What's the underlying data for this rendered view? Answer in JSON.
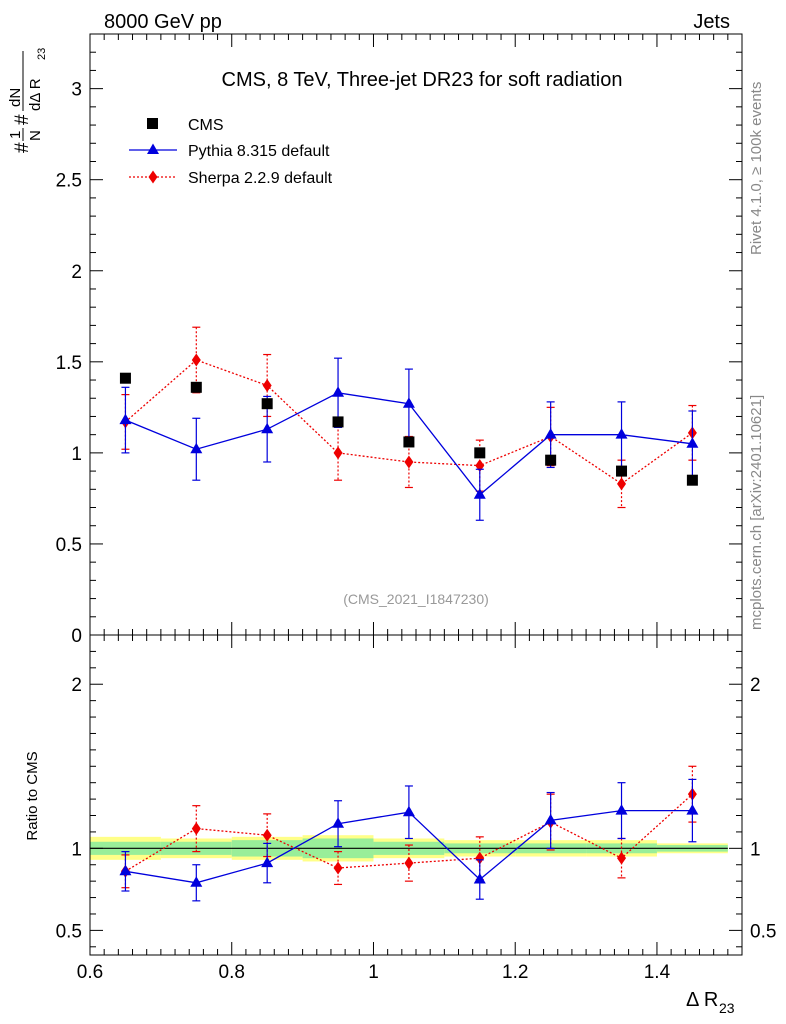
{
  "header": {
    "left": "8000 GeV pp",
    "right": "Jets"
  },
  "side_labels": {
    "rivet": "Rivet 4.1.0, ≥ 100k events",
    "mcplots": "mcplots.cern.ch [arXiv:2401.10621]"
  },
  "analysis_id": "(CMS_2021_I1847230)",
  "colors": {
    "data": "#000000",
    "pythia": "#0000dd",
    "sherpa": "#ee0000",
    "band_inner": "#99ee99",
    "band_outer": "#ffff88"
  },
  "chart_data": [
    {
      "type": "scatter",
      "panel": "main",
      "title": "CMS, 8 TeV, Three-jet DR23 for soft radiation",
      "xlabel": "Δ R23",
      "ylabel": "1/N dN/dΔ R23",
      "ylabel_parts": {
        "one": "1",
        "n": "N",
        "hash1": "#",
        "dn": "dN",
        "hash2": "#",
        "dd": "dΔ R",
        "sub": "23"
      },
      "xlim": [
        0.6,
        1.52
      ],
      "ylim": [
        0,
        3.3
      ],
      "yticks": [
        "0",
        "0.5",
        "1",
        "1.5",
        "2",
        "2.5",
        "3"
      ],
      "legend": [
        "CMS",
        "Pythia 8.315 default",
        "Sherpa 2.2.9 default"
      ],
      "legend_position": "top-left",
      "x": [
        0.65,
        0.75,
        0.85,
        0.95,
        1.05,
        1.15,
        1.25,
        1.35,
        1.45
      ],
      "series": [
        {
          "name": "CMS",
          "values": [
            1.41,
            1.36,
            1.27,
            1.17,
            1.06,
            1.0,
            0.96,
            0.9,
            0.85
          ]
        },
        {
          "name": "Pythia 8.315 default",
          "values": [
            1.18,
            1.02,
            1.13,
            1.33,
            1.27,
            0.77,
            1.1,
            1.1,
            1.05
          ],
          "errors": [
            0.18,
            0.17,
            0.18,
            0.19,
            0.19,
            0.14,
            0.18,
            0.18,
            0.18
          ]
        },
        {
          "name": "Sherpa 2.2.9 default",
          "values": [
            1.17,
            1.51,
            1.37,
            1.0,
            0.95,
            0.93,
            1.09,
            0.83,
            1.11
          ],
          "errors": [
            0.15,
            0.18,
            0.17,
            0.15,
            0.14,
            0.14,
            0.16,
            0.13,
            0.15
          ]
        }
      ]
    },
    {
      "type": "line",
      "panel": "ratio",
      "ylabel": "Ratio to CMS",
      "xlabel": "Δ R23",
      "xlim": [
        0.6,
        1.52
      ],
      "ylim": [
        0.35,
        2.3
      ],
      "yticks": [
        "0.5",
        "1",
        "2"
      ],
      "xticks": [
        "0.6",
        "0.8",
        "1",
        "1.2",
        "1.4"
      ],
      "x": [
        0.65,
        0.75,
        0.85,
        0.95,
        1.05,
        1.15,
        1.25,
        1.35,
        1.45
      ],
      "data_band_inner": [
        0.04,
        0.04,
        0.05,
        0.06,
        0.04,
        0.03,
        0.03,
        0.03,
        0.02
      ],
      "data_band_outer": [
        0.07,
        0.06,
        0.07,
        0.08,
        0.06,
        0.05,
        0.05,
        0.05,
        0.03
      ],
      "series": [
        {
          "name": "Pythia 8.315 default",
          "values": [
            0.86,
            0.79,
            0.91,
            1.15,
            1.22,
            0.81,
            1.17,
            1.23,
            1.23
          ],
          "errors": [
            0.12,
            0.11,
            0.12,
            0.14,
            0.16,
            0.12,
            0.17,
            0.17,
            0.19
          ]
        },
        {
          "name": "Sherpa 2.2.9 default",
          "values": [
            0.86,
            1.12,
            1.08,
            0.88,
            0.91,
            0.94,
            1.16,
            0.94,
            1.33
          ],
          "errors": [
            0.1,
            0.14,
            0.13,
            0.1,
            0.11,
            0.13,
            0.17,
            0.12,
            0.17
          ]
        }
      ]
    }
  ]
}
